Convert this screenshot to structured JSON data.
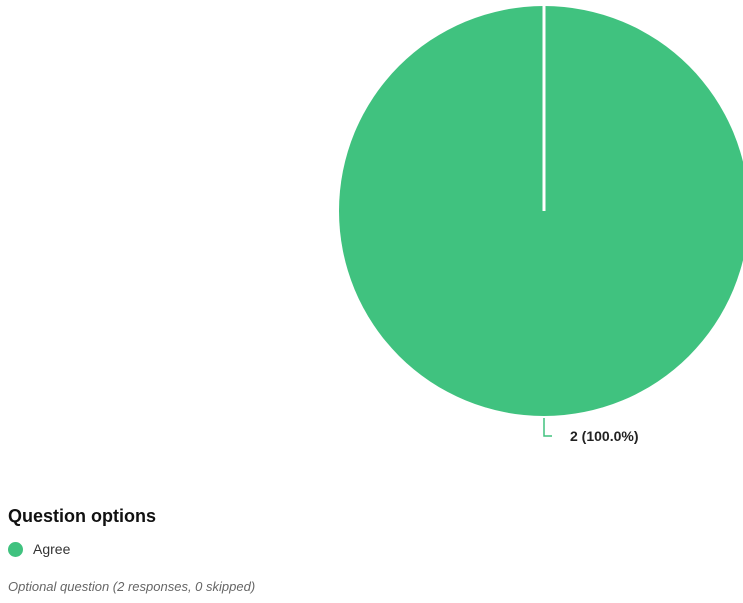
{
  "chart_data": {
    "type": "pie",
    "categories": [
      "Agree"
    ],
    "values": [
      2
    ],
    "percentages": [
      100.0
    ],
    "data_labels": [
      "2 (100.0%)"
    ],
    "colors": [
      "#40c27f"
    ],
    "legend": {
      "title": "Question options",
      "placement": "bottom-left",
      "entries": [
        "Agree"
      ]
    }
  },
  "footnote": "Optional question (2 responses, 0 skipped)"
}
